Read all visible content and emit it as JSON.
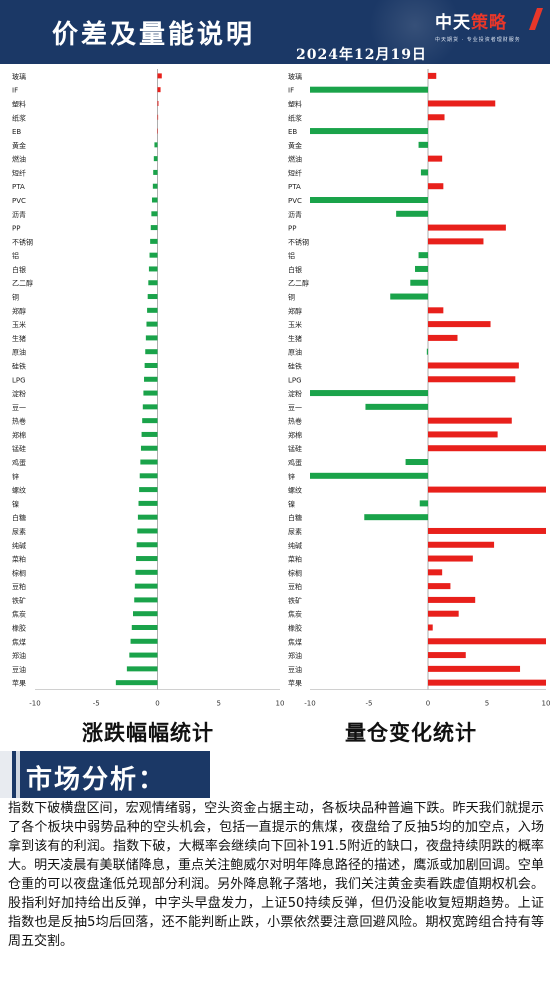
{
  "header": {
    "title": "价差及量能说明",
    "date": "2024年12月19日",
    "logo_main_part1": "中天",
    "logo_main_part2": "策略",
    "logo_sub": "中天期货 · 专业投资者理财服务"
  },
  "captions": {
    "left": "涨跌幅幅统计",
    "right": "量仓变化统计"
  },
  "analysis": {
    "title": "市场分析：",
    "text": "指数下破横盘区间，宏观情绪弱，空头资金占据主动，各板块品种普遍下跌。昨天我们就提示了各个板块中弱势品种的空头机会，包括一直提示的焦煤，夜盘给了反抽5均的加空点，入场拿到该有的利润。指数下破，大概率会继续向下回补191.5附近的缺口，夜盘持续阴跌的概率大。明天凌晨有美联储降息，重点关注鲍威尔对明年降息路径的描述，鹰派或加剧回调。空单仓重的可以夜盘逢低兑现部分利润。另外降息靴子落地，我们关注黄金卖看跌虚值期权机会。股指利好加持给出反弹，中字头早盘发力，上证50持续反弹，但仍没能收复短期趋势。上证指数也是反抽5均后回落，还不能判断止跌，小票依然要注意回避风险。期权宽跨组合持有等周五交割。"
  },
  "chart_data": [
    {
      "type": "bar",
      "orientation": "horizontal",
      "title": "涨跌幅幅统计",
      "xlim": [
        -10,
        10
      ],
      "xticks": [
        -10,
        -5,
        0,
        5,
        10
      ],
      "grid": false,
      "colors": {
        "positive": "#e8201b",
        "negative": "#1aa34a"
      },
      "categories": [
        "玻璃",
        "IF",
        "塑料",
        "纸浆",
        "EB",
        "黄金",
        "燃油",
        "短纤",
        "PTA",
        "PVC",
        "沥青",
        "PP",
        "不锈钢",
        "铝",
        "白银",
        "乙二醇",
        "铜",
        "郑醇",
        "玉米",
        "生猪",
        "原油",
        "硅铁",
        "LPG",
        "淀粉",
        "豆一",
        "热卷",
        "郑棉",
        "锰硅",
        "鸡蛋",
        "锌",
        "螺纹",
        "镍",
        "白糖",
        "尿素",
        "纯碱",
        "菜粕",
        "棕榈",
        "豆粕",
        "铁矿",
        "焦炭",
        "橡胶",
        "焦煤",
        "郑油",
        "豆油",
        "苹果"
      ],
      "values": [
        0.35,
        0.25,
        0.08,
        0.05,
        0.0,
        -0.25,
        -0.3,
        -0.35,
        -0.38,
        -0.45,
        -0.5,
        -0.55,
        -0.6,
        -0.65,
        -0.7,
        -0.75,
        -0.8,
        -0.85,
        -0.9,
        -0.95,
        -1.0,
        -1.05,
        -1.1,
        -1.15,
        -1.2,
        -1.25,
        -1.3,
        -1.35,
        -1.4,
        -1.45,
        -1.5,
        -1.55,
        -1.6,
        -1.65,
        -1.7,
        -1.75,
        -1.8,
        -1.85,
        -1.9,
        -2.0,
        -2.1,
        -2.2,
        -2.3,
        -2.5,
        -3.4
      ]
    },
    {
      "type": "bar",
      "orientation": "horizontal",
      "title": "量仓变化统计",
      "xlim": [
        -10,
        10
      ],
      "xticks": [
        -10,
        -5,
        0,
        5,
        10
      ],
      "grid": false,
      "colors": {
        "positive": "#e8201b",
        "negative": "#1aa34a"
      },
      "categories": [
        "玻璃",
        "IF",
        "塑料",
        "纸浆",
        "EB",
        "黄金",
        "燃油",
        "短纤",
        "PTA",
        "PVC",
        "沥青",
        "PP",
        "不锈钢",
        "铝",
        "白银",
        "乙二醇",
        "铜",
        "郑醇",
        "玉米",
        "生猪",
        "原油",
        "硅铁",
        "LPG",
        "淀粉",
        "豆一",
        "热卷",
        "郑棉",
        "锰硅",
        "鸡蛋",
        "锌",
        "螺纹",
        "镍",
        "白糖",
        "尿素",
        "纯碱",
        "菜粕",
        "棕榈",
        "豆粕",
        "铁矿",
        "焦炭",
        "橡胶",
        "焦煤",
        "郑油",
        "豆油",
        "苹果"
      ],
      "values": [
        0.7,
        -10,
        5.7,
        1.4,
        -10,
        -0.8,
        1.2,
        -0.6,
        1.3,
        -10,
        -2.7,
        6.6,
        4.7,
        -0.8,
        -1.1,
        -1.5,
        -3.2,
        1.3,
        5.3,
        2.5,
        -0.1,
        7.7,
        7.4,
        -10,
        -5.3,
        7.1,
        5.9,
        10,
        -1.9,
        -10,
        10,
        -0.7,
        -5.4,
        10,
        5.6,
        3.8,
        1.2,
        1.9,
        4.0,
        2.6,
        0.4,
        10,
        3.2,
        7.8,
        10
      ]
    }
  ]
}
